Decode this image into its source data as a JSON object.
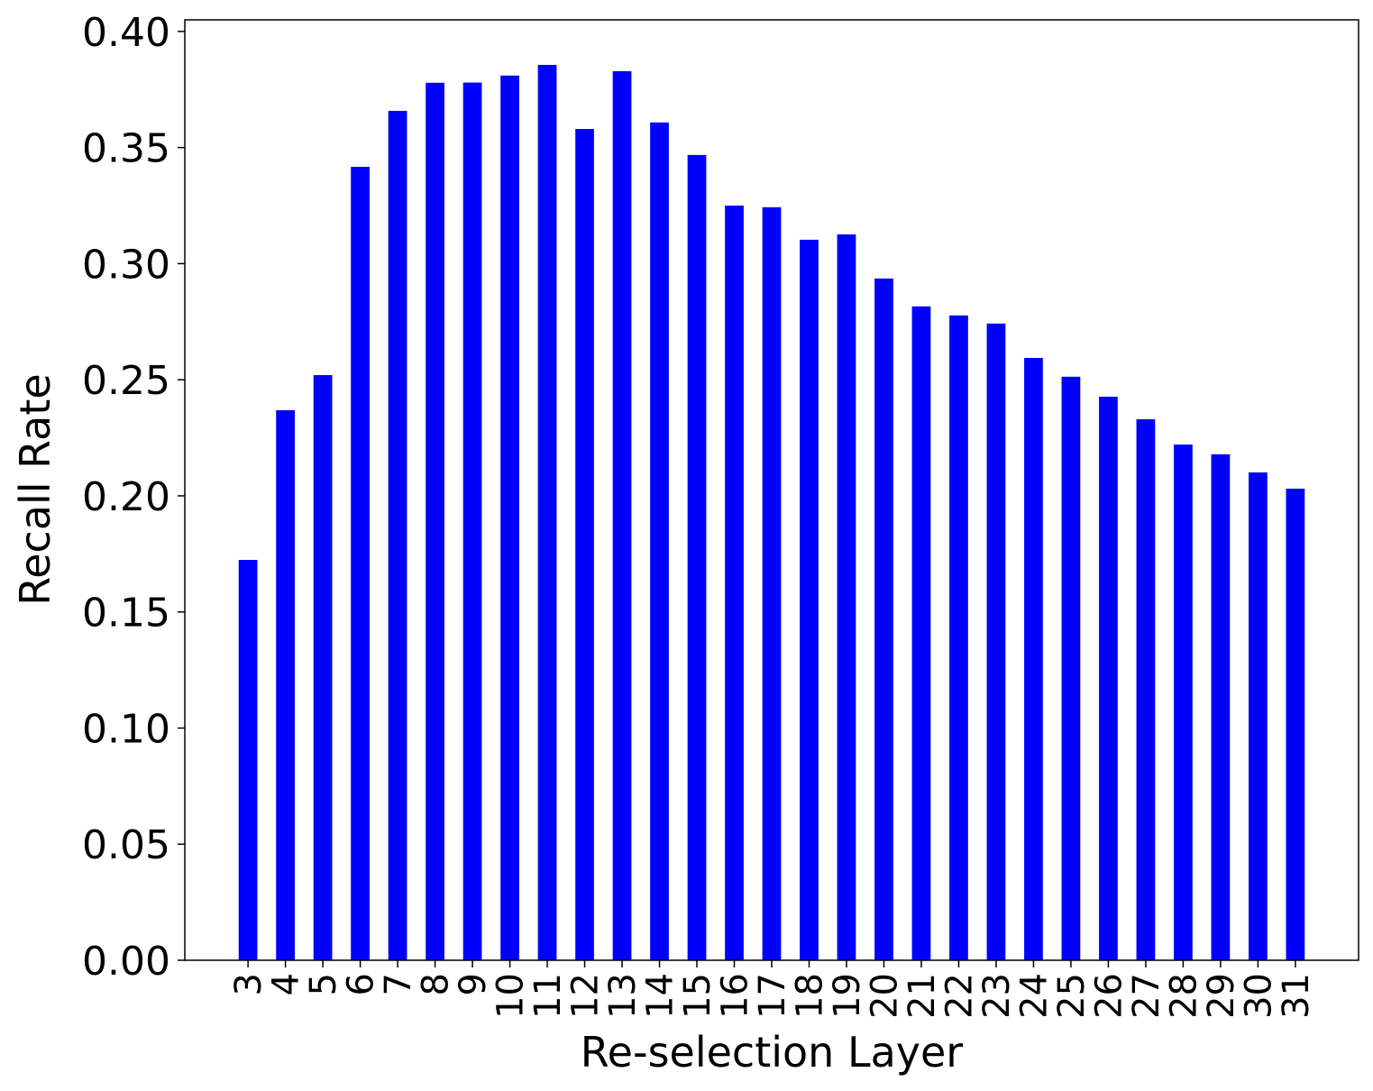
{
  "chart_data": {
    "type": "bar",
    "x_label": "Re-selection Layer",
    "y_label": "Recall Rate",
    "categories": [
      "3",
      "4",
      "5",
      "6",
      "7",
      "8",
      "9",
      "10",
      "11",
      "12",
      "13",
      "14",
      "15",
      "16",
      "17",
      "18",
      "19",
      "20",
      "21",
      "22",
      "23",
      "24",
      "25",
      "26",
      "27",
      "28",
      "29",
      "30",
      "31"
    ],
    "values": [
      0.1724,
      0.2369,
      0.252,
      0.3417,
      0.3658,
      0.3779,
      0.378,
      0.381,
      0.3856,
      0.358,
      0.3829,
      0.3608,
      0.3468,
      0.325,
      0.3243,
      0.3103,
      0.3126,
      0.2936,
      0.2816,
      0.2777,
      0.2742,
      0.2594,
      0.2513,
      0.2427,
      0.233,
      0.2221,
      0.2179,
      0.2101,
      0.2031
    ],
    "color": "#0000ff",
    "ylim": [
      0,
      0.405
    ],
    "yticks": [
      {
        "value": 0,
        "label": "0.00"
      },
      {
        "value": 0.05,
        "label": "0.05"
      },
      {
        "value": 0.1,
        "label": "0.10"
      },
      {
        "value": 0.15,
        "label": "0.15"
      },
      {
        "value": 0.2,
        "label": "0.20"
      },
      {
        "value": 0.25,
        "label": "0.25"
      },
      {
        "value": 0.3,
        "label": "0.30"
      },
      {
        "value": 0.35,
        "label": "0.35"
      },
      {
        "value": 0.4,
        "label": "0.40"
      }
    ],
    "grid": false
  }
}
